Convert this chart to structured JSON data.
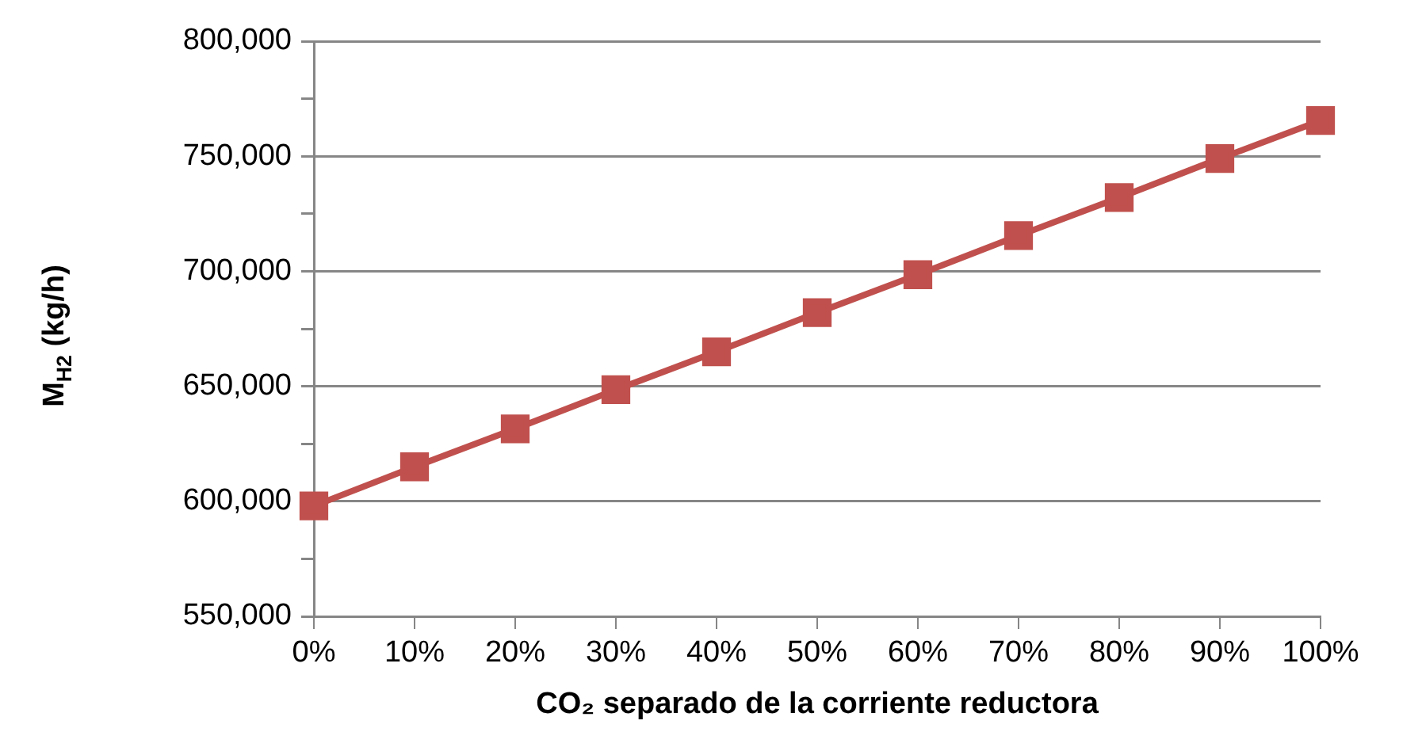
{
  "chart_data": {
    "type": "line",
    "xlabel": "CO₂ separado de la corriente reductora",
    "ylabel": "M$_{H2}$ (kg/h)",
    "categories": [
      "0%",
      "10%",
      "20%",
      "30%",
      "40%",
      "50%",
      "60%",
      "70%",
      "80%",
      "90%",
      "100%"
    ],
    "series": [
      {
        "color": "#c0504d",
        "values": [
          598000,
          615000,
          631500,
          648500,
          665000,
          682000,
          698500,
          715500,
          732000,
          749000,
          765500
        ]
      }
    ],
    "ylim": [
      550000,
      800000
    ],
    "yticks": [
      {
        "value": 550000,
        "label": "550,000"
      },
      {
        "value": 575000,
        "label": null
      },
      {
        "value": 600000,
        "label": "600,000"
      },
      {
        "value": 625000,
        "label": null
      },
      {
        "value": 650000,
        "label": "650,000"
      },
      {
        "value": 675000,
        "label": null
      },
      {
        "value": 700000,
        "label": "700,000"
      },
      {
        "value": 725000,
        "label": null
      },
      {
        "value": 750000,
        "label": "750,000"
      },
      {
        "value": 775000,
        "label": null
      },
      {
        "value": 800000,
        "label": "800,000"
      }
    ],
    "grid": "y",
    "legend": false,
    "marker": "square",
    "line_style": "solid"
  }
}
